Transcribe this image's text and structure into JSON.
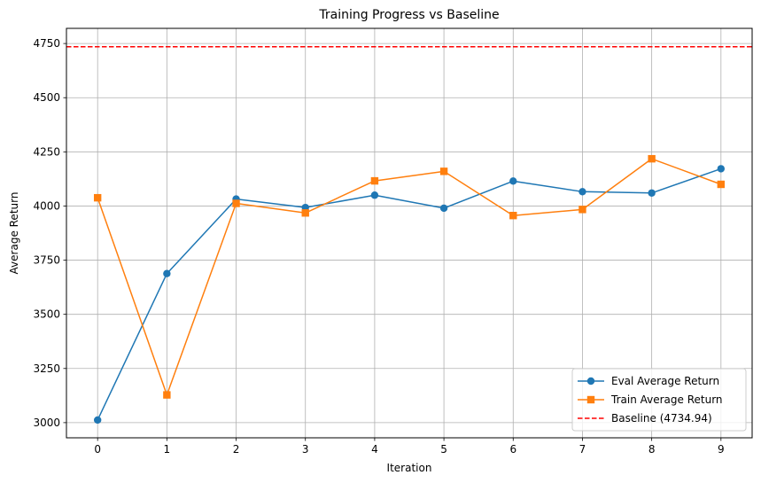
{
  "chart_data": {
    "type": "line",
    "title": "Training Progress vs Baseline",
    "xlabel": "Iteration",
    "ylabel": "Average Return",
    "x": [
      0,
      1,
      2,
      3,
      4,
      5,
      6,
      7,
      8,
      9
    ],
    "xlim": [
      -0.45,
      9.45
    ],
    "ylim": [
      2930,
      4820
    ],
    "xticks": [
      0,
      1,
      2,
      3,
      4,
      5,
      6,
      7,
      8,
      9
    ],
    "yticks": [
      3000,
      3250,
      3500,
      3750,
      4000,
      4250,
      4500,
      4750
    ],
    "grid": true,
    "legend_position": "lower-right",
    "series": [
      {
        "name": "Eval Average Return",
        "color": "#1f77b4",
        "marker": "circle",
        "values": [
          3012,
          3688,
          4032,
          3993,
          4050,
          3990,
          4115,
          4066,
          4060,
          4172
        ]
      },
      {
        "name": "Train Average Return",
        "color": "#ff7f0e",
        "marker": "square",
        "values": [
          4038,
          3128,
          4012,
          3968,
          4116,
          4160,
          3956,
          3984,
          4218,
          4100
        ]
      }
    ],
    "baseline": {
      "name": "Baseline (4734.94)",
      "value": 4734.94,
      "color": "#ff0000",
      "style": "dashed"
    }
  }
}
